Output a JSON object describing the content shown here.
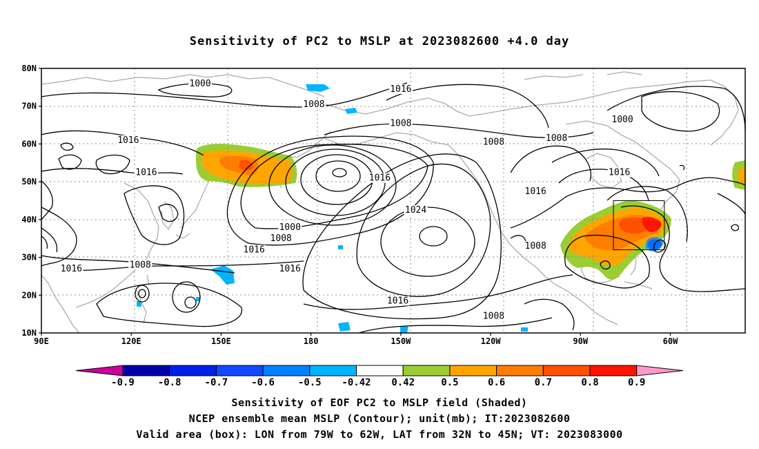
{
  "title": "Sensitivity of PC2 to MSLP at 2023082600 +4.0 day",
  "lat_ticks": [
    "80N",
    "70N",
    "60N",
    "50N",
    "40N",
    "30N",
    "20N",
    "10N"
  ],
  "lon_ticks": [
    "90E",
    "120E",
    "150E",
    "180",
    "150W",
    "120W",
    "90W",
    "60W"
  ],
  "contour_labels": [
    {
      "text": "1000",
      "lon": 143,
      "lat": 76
    },
    {
      "text": "1008",
      "lon": 181,
      "lat": 70.5
    },
    {
      "text": "1016",
      "lon": 210,
      "lat": 74.5
    },
    {
      "text": "1008",
      "lon": 210,
      "lat": 65.5
    },
    {
      "text": "1016",
      "lon": 119,
      "lat": 61
    },
    {
      "text": "1016",
      "lon": 125,
      "lat": 52.5
    },
    {
      "text": "1008",
      "lon": 241,
      "lat": 60.5
    },
    {
      "text": "1008",
      "lon": 262,
      "lat": 61.5
    },
    {
      "text": "1000",
      "lon": 284,
      "lat": 66.5
    },
    {
      "text": "1016",
      "lon": 283,
      "lat": 52.5
    },
    {
      "text": "1016",
      "lon": 255,
      "lat": 47.5
    },
    {
      "text": "1016",
      "lon": 203,
      "lat": 51
    },
    {
      "text": "1024",
      "lon": 215,
      "lat": 42.5
    },
    {
      "text": "1000",
      "lon": 173,
      "lat": 38
    },
    {
      "text": "1008",
      "lon": 170,
      "lat": 35
    },
    {
      "text": "1016",
      "lon": 161,
      "lat": 32
    },
    {
      "text": "1016",
      "lon": 173,
      "lat": 27
    },
    {
      "text": "1008",
      "lon": 255,
      "lat": 33
    },
    {
      "text": "1016",
      "lon": 100,
      "lat": 27
    },
    {
      "text": "1008",
      "lon": 123,
      "lat": 28
    },
    {
      "text": "1016",
      "lon": 209,
      "lat": 18.5
    },
    {
      "text": "1008",
      "lon": 241,
      "lat": 14.5
    }
  ],
  "colorbar": {
    "labels": [
      "-0.9",
      "-0.8",
      "-0.7",
      "-0.6",
      "-0.5",
      "-0.42",
      "0.42",
      "0.5",
      "0.6",
      "0.7",
      "0.8",
      "0.9"
    ],
    "colors": [
      "#0000a8",
      "#0020e8",
      "#1048ff",
      "#0080ff",
      "#00b4ff",
      "#ffffff",
      "#9acd32",
      "#ffa500",
      "#ff7d00",
      "#ff5000",
      "#ff1400"
    ],
    "low_color": "#cc0099",
    "high_color": "#ff99cc"
  },
  "footer": {
    "line1": "Sensitivity of EOF PC2 to MSLP field (Shaded)",
    "line2": "NCEP ensemble mean MSLP (Contour); unit(mb); IT:2023082600",
    "line3": "Valid area (box): LON from 79W to 62W, LAT from 32N to 45N; VT: 2023083000"
  },
  "valid_box": {
    "lon_min": -79,
    "lon_max": -62,
    "lat_min": 32,
    "lat_max": 45
  }
}
